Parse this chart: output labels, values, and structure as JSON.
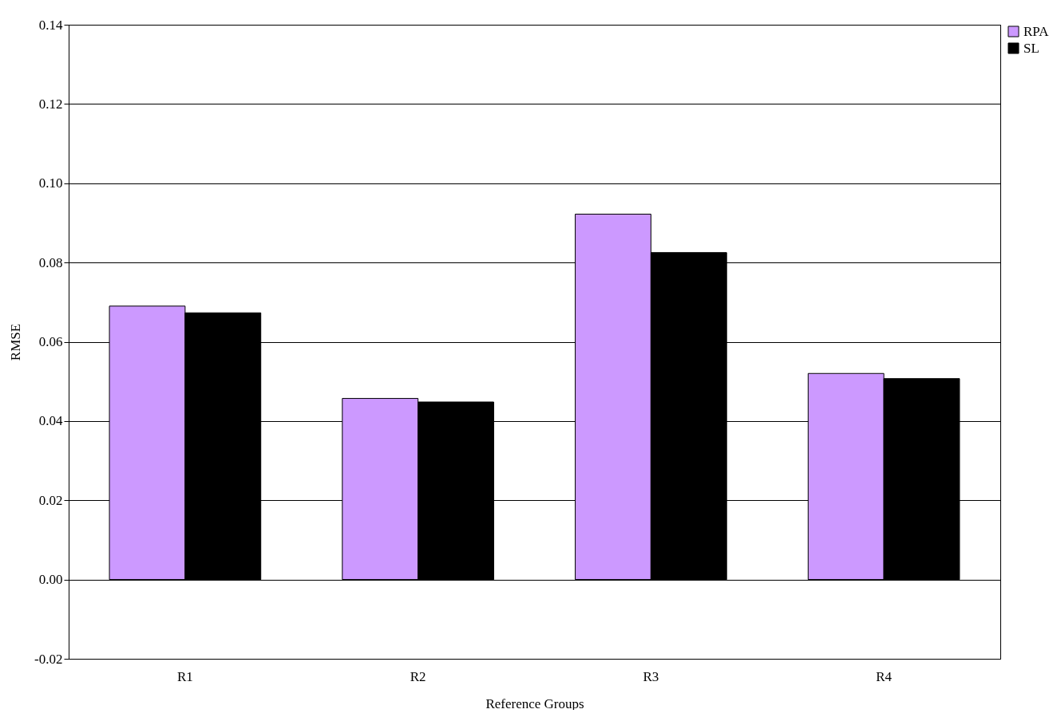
{
  "chart_data": {
    "type": "bar",
    "xlabel": "Reference Groups",
    "ylabel": "RMSE",
    "categories": [
      "R1",
      "R2",
      "R3",
      "R4"
    ],
    "series": [
      {
        "name": "RPA",
        "color": "#cc99ff",
        "values": [
          0.069,
          0.0457,
          0.0922,
          0.052
        ]
      },
      {
        "name": "SL",
        "color": "#000000",
        "values": [
          0.0673,
          0.0448,
          0.0825,
          0.0507
        ]
      }
    ],
    "ylim": [
      -0.02,
      0.14
    ],
    "yticks": [
      {
        "value": -0.02,
        "label": "-0.02"
      },
      {
        "value": 0,
        "label": "0.00"
      },
      {
        "value": 0.02,
        "label": "0.02"
      },
      {
        "value": 0.04,
        "label": "0.04"
      },
      {
        "value": 0.06,
        "label": "0.06"
      },
      {
        "value": 0.08,
        "label": "0.08"
      },
      {
        "value": 0.1,
        "label": "0.10"
      },
      {
        "value": 0.12,
        "label": "0.12"
      },
      {
        "value": 0.14,
        "label": "0.14"
      }
    ],
    "grid": "y",
    "legend": "right"
  }
}
